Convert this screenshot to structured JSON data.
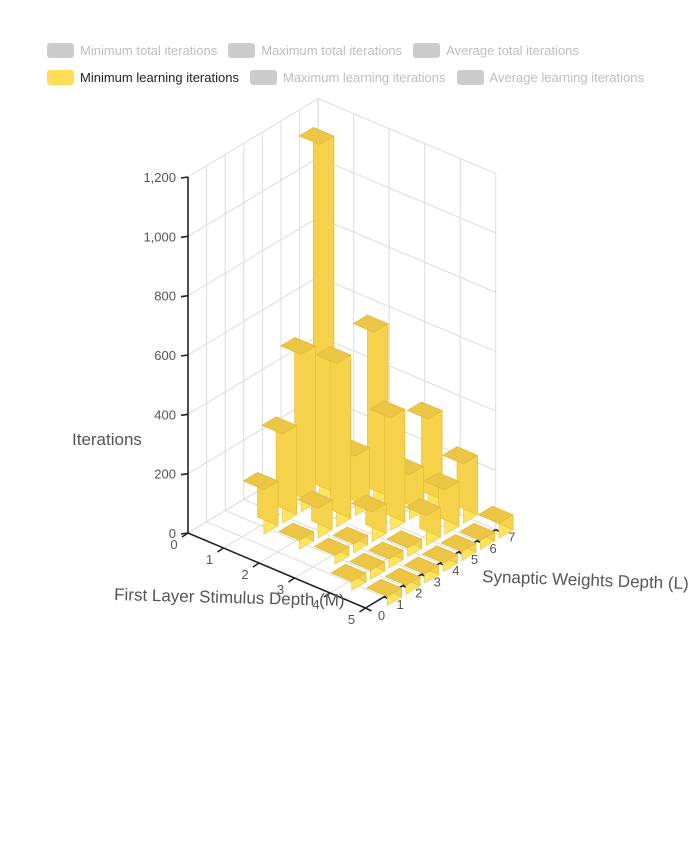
{
  "legend": {
    "row1": [
      {
        "label": "Minimum total iterations",
        "color": "#cccccc",
        "active": false
      },
      {
        "label": "Maximum total iterations",
        "color": "#cccccc",
        "active": false
      },
      {
        "label": "Average total iterations",
        "color": "#cccccc",
        "active": false
      }
    ],
    "row2": [
      {
        "label": "Minimum learning iterations",
        "color": "#ffdd57",
        "active": true
      },
      {
        "label": "Maximum learning iterations",
        "color": "#cccccc",
        "active": false
      },
      {
        "label": "Average learning iterations",
        "color": "#cccccc",
        "active": false
      }
    ]
  },
  "chart_data": {
    "type": "bar3d",
    "title": "",
    "xlabel": "First Layer Stimulus Depth (M)",
    "ylabel": "Synaptic Weights Depth (L)",
    "zlabel": "Iterations",
    "m_ticks": [
      "0",
      "1",
      "2",
      "3",
      "4",
      "5"
    ],
    "l_ticks": [
      "0",
      "1",
      "2",
      "3",
      "4",
      "5",
      "6",
      "7"
    ],
    "z_ticks": [
      "0",
      "200",
      "400",
      "600",
      "800",
      "1,000",
      "1,200"
    ],
    "zlim": [
      0,
      1200
    ],
    "grid": true,
    "bar_color": "#ffdd57",
    "series": [
      {
        "name": "Minimum learning iterations",
        "points": [
          {
            "m": 1,
            "l": 2,
            "value": 150
          },
          {
            "m": 1,
            "l": 3,
            "value": 300
          },
          {
            "m": 1,
            "l": 4,
            "value": 530
          },
          {
            "m": 1,
            "l": 5,
            "value": 1200
          },
          {
            "m": 2,
            "l": 2,
            "value": 30
          },
          {
            "m": 2,
            "l": 3,
            "value": 100
          },
          {
            "m": 2,
            "l": 4,
            "value": 550
          },
          {
            "m": 2,
            "l": 5,
            "value": 200
          },
          {
            "m": 2,
            "l": 6,
            "value": 580
          },
          {
            "m": 3,
            "l": 2,
            "value": 30
          },
          {
            "m": 3,
            "l": 3,
            "value": 30
          },
          {
            "m": 3,
            "l": 4,
            "value": 100
          },
          {
            "m": 3,
            "l": 5,
            "value": 380
          },
          {
            "m": 3,
            "l": 6,
            "value": 150
          },
          {
            "m": 3,
            "l": 7,
            "value": 300
          },
          {
            "m": 4,
            "l": 1,
            "value": 30
          },
          {
            "m": 4,
            "l": 2,
            "value": 30
          },
          {
            "m": 4,
            "l": 3,
            "value": 30
          },
          {
            "m": 4,
            "l": 4,
            "value": 30
          },
          {
            "m": 4,
            "l": 5,
            "value": 100
          },
          {
            "m": 4,
            "l": 6,
            "value": 150
          },
          {
            "m": 4,
            "l": 7,
            "value": 200
          },
          {
            "m": 5,
            "l": 1,
            "value": 30
          },
          {
            "m": 5,
            "l": 2,
            "value": 30
          },
          {
            "m": 5,
            "l": 3,
            "value": 30
          },
          {
            "m": 5,
            "l": 4,
            "value": 30
          },
          {
            "m": 5,
            "l": 5,
            "value": 30
          },
          {
            "m": 5,
            "l": 6,
            "value": 30
          },
          {
            "m": 5,
            "l": 7,
            "value": 50
          }
        ]
      }
    ]
  }
}
